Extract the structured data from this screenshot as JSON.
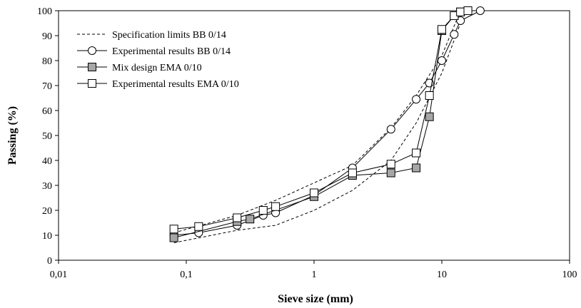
{
  "chart_data": {
    "type": "line",
    "xlabel": "Sieve size (mm)",
    "ylabel": "Passing (%)",
    "x_scale": "log",
    "xlim": [
      0.01,
      100
    ],
    "ylim": [
      0,
      100
    ],
    "x_ticks": [
      0.01,
      0.1,
      1,
      10,
      100
    ],
    "x_tick_labels": [
      "0,01",
      "0,1",
      "1",
      "10",
      "100"
    ],
    "y_ticks": [
      0,
      10,
      20,
      30,
      40,
      50,
      60,
      70,
      80,
      90,
      100
    ],
    "y_tick_labels": [
      "0",
      "10",
      "20",
      "30",
      "40",
      "50",
      "60",
      "70",
      "80",
      "90",
      "100"
    ],
    "grid": false,
    "legend_position": "top-left",
    "series": [
      {
        "name": "Specification limits BB 0/14",
        "style": "dashed",
        "marker": "none",
        "segments": [
          {
            "x": [
              0.08,
              0.25,
              0.5,
              1,
              2,
              4,
              6.3,
              10,
              14
            ],
            "y": [
              7,
              12,
              14,
              20,
              28,
              40,
              55,
              75,
              95
            ]
          },
          {
            "x": [
              0.08,
              0.25,
              0.5,
              1,
              2,
              4,
              6.3,
              10,
              14
            ],
            "y": [
              11,
              18,
              24,
              31,
              38,
              53,
              66,
              82,
              100
            ]
          }
        ]
      },
      {
        "name": "Experimental results BB 0/14",
        "style": "solid",
        "marker": "circle-open",
        "x": [
          0.08,
          0.125,
          0.25,
          0.4,
          0.5,
          1,
          2,
          4,
          6.3,
          8,
          10,
          12.5,
          14,
          20
        ],
        "y": [
          10,
          11,
          14,
          18,
          19,
          26,
          37,
          52.5,
          64.5,
          71,
          80,
          90.5,
          96,
          100
        ]
      },
      {
        "name": "Mix design EMA 0/10",
        "style": "solid",
        "marker": "square-filled",
        "x": [
          0.08,
          0.25,
          0.315,
          1,
          2,
          4,
          6.3,
          8,
          10,
          12.5,
          14,
          16
        ],
        "y": [
          9,
          15.5,
          16.5,
          25.5,
          34,
          35,
          37,
          57.5,
          92,
          98,
          99.5,
          100
        ]
      },
      {
        "name": "Experimental results EMA 0/10",
        "style": "solid",
        "marker": "square-open",
        "x": [
          0.08,
          0.125,
          0.25,
          0.4,
          0.5,
          1,
          2,
          4,
          6.3,
          8,
          10,
          12.5,
          14,
          16
        ],
        "y": [
          12.5,
          13.5,
          17,
          20,
          21.5,
          27,
          35,
          38.5,
          43,
          66,
          92.5,
          98,
          99.5,
          100
        ]
      }
    ]
  },
  "colors": {
    "axis": "#000000",
    "line": "#000000",
    "marker_fill_open": "#ffffff",
    "marker_fill_filled": "#a6a6a6"
  }
}
